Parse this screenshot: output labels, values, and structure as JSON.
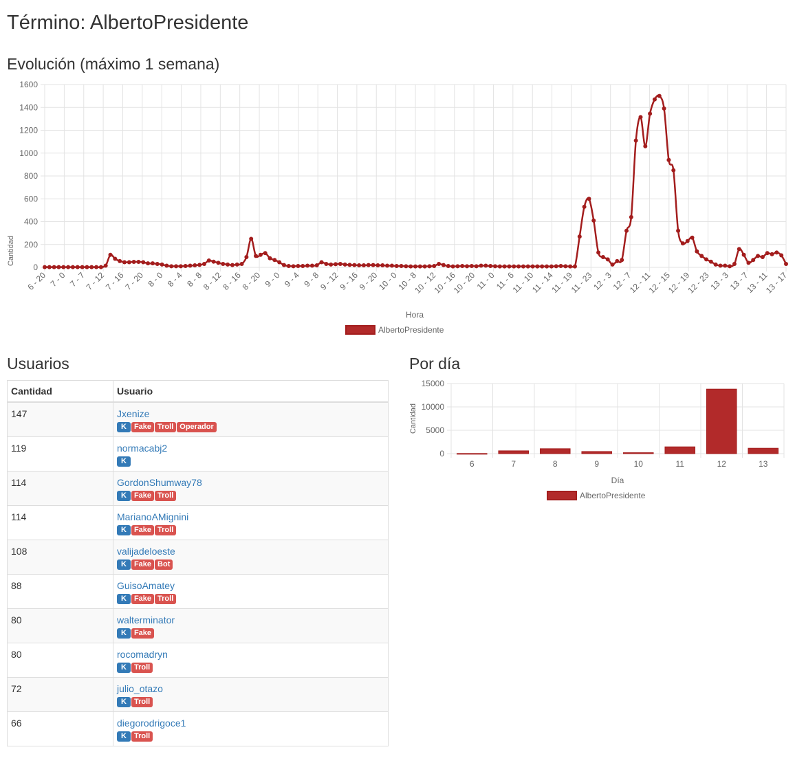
{
  "page": {
    "title": "Término: AlbertoPresidente",
    "evolution_title": "Evolución (máximo 1 semana)",
    "users_title": "Usuarios",
    "by_day_title": "Por día"
  },
  "colors": {
    "series": "#a31d1d",
    "series_fill": "#b22a2a",
    "grid": "#e3e3e3",
    "link": "#337ab7",
    "tag_blue": "#337ab7",
    "tag_red": "#d9534f"
  },
  "chart_data": [
    {
      "type": "line",
      "title": "",
      "xlabel": "Hora",
      "ylabel": "Cantidad",
      "ylim": [
        0,
        1600
      ],
      "yticks": [
        0,
        200,
        400,
        600,
        800,
        1000,
        1200,
        1400,
        1600
      ],
      "grid": true,
      "legend": "bottom-center",
      "x_tick_labels": [
        "6 - 20",
        "7 - 0",
        "7 - 7",
        "7 - 12",
        "7 - 16",
        "7 - 20",
        "8 - 0",
        "8 - 4",
        "8 - 8",
        "8 - 12",
        "8 - 16",
        "8 - 20",
        "9 - 0",
        "9 - 4",
        "9 - 8",
        "9 - 12",
        "9 - 16",
        "9 - 20",
        "10 - 0",
        "10 - 8",
        "10 - 12",
        "10 - 16",
        "10 - 20",
        "11 - 0",
        "11 - 6",
        "11 - 10",
        "11 - 14",
        "11 - 19",
        "11 - 23",
        "12 - 3",
        "12 - 7",
        "12 - 11",
        "12 - 15",
        "12 - 19",
        "12 - 23",
        "13 - 3",
        "13 - 7",
        "13 - 11",
        "13 - 17"
      ],
      "series": [
        {
          "name": "AlbertoPresidente",
          "values": [
            2,
            2,
            2,
            2,
            2,
            2,
            2,
            2,
            2,
            2,
            2,
            2,
            2,
            15,
            110,
            75,
            55,
            45,
            45,
            48,
            48,
            45,
            35,
            35,
            30,
            25,
            15,
            10,
            10,
            10,
            12,
            15,
            18,
            22,
            30,
            60,
            50,
            40,
            30,
            25,
            20,
            25,
            30,
            90,
            250,
            100,
            110,
            125,
            80,
            65,
            45,
            20,
            12,
            10,
            12,
            12,
            15,
            15,
            18,
            45,
            30,
            25,
            28,
            30,
            25,
            22,
            20,
            18,
            18,
            20,
            20,
            18,
            18,
            15,
            15,
            12,
            12,
            10,
            8,
            8,
            8,
            8,
            10,
            12,
            30,
            20,
            12,
            8,
            10,
            12,
            10,
            12,
            10,
            15,
            15,
            12,
            10,
            8,
            8,
            8,
            8,
            8,
            8,
            8,
            8,
            8,
            8,
            8,
            8,
            10,
            12,
            10,
            8,
            8,
            270,
            530,
            600,
            410,
            130,
            90,
            70,
            25,
            55,
            65,
            320,
            440,
            1110,
            1315,
            1060,
            1345,
            1470,
            1500,
            1390,
            940,
            850,
            320,
            210,
            230,
            260,
            140,
            100,
            70,
            50,
            25,
            15,
            15,
            10,
            30,
            160,
            110,
            40,
            65,
            100,
            90,
            125,
            115,
            130,
            105,
            30
          ]
        }
      ]
    },
    {
      "type": "bar",
      "title": "",
      "xlabel": "Día",
      "ylabel": "Cantidad",
      "ylim": [
        0,
        15000
      ],
      "yticks": [
        0,
        5000,
        10000,
        15000
      ],
      "grid": true,
      "legend": "bottom-center",
      "categories": [
        "6",
        "7",
        "8",
        "9",
        "10",
        "11",
        "12",
        "13"
      ],
      "series": [
        {
          "name": "AlbertoPresidente",
          "values": [
            30,
            600,
            1050,
            450,
            200,
            1450,
            13800,
            1150
          ]
        }
      ]
    }
  ],
  "users_table": {
    "headers": [
      "Cantidad",
      "Usuario"
    ],
    "rows": [
      {
        "count": "147",
        "user": "Jxenize",
        "tags": [
          {
            "text": "K",
            "color": "blue"
          },
          {
            "text": "Fake",
            "color": "red"
          },
          {
            "text": "Troll",
            "color": "red"
          },
          {
            "text": "Operador",
            "color": "red"
          }
        ]
      },
      {
        "count": "119",
        "user": "normacabj2",
        "tags": [
          {
            "text": "K",
            "color": "blue"
          }
        ]
      },
      {
        "count": "114",
        "user": "GordonShumway78",
        "tags": [
          {
            "text": "K",
            "color": "blue"
          },
          {
            "text": "Fake",
            "color": "red"
          },
          {
            "text": "Troll",
            "color": "red"
          }
        ]
      },
      {
        "count": "114",
        "user": "MarianoAMignini",
        "tags": [
          {
            "text": "K",
            "color": "blue"
          },
          {
            "text": "Fake",
            "color": "red"
          },
          {
            "text": "Troll",
            "color": "red"
          }
        ]
      },
      {
        "count": "108",
        "user": "valijadeloeste",
        "tags": [
          {
            "text": "K",
            "color": "blue"
          },
          {
            "text": "Fake",
            "color": "red"
          },
          {
            "text": "Bot",
            "color": "red"
          }
        ]
      },
      {
        "count": "88",
        "user": "GuisoAmatey",
        "tags": [
          {
            "text": "K",
            "color": "blue"
          },
          {
            "text": "Fake",
            "color": "red"
          },
          {
            "text": "Troll",
            "color": "red"
          }
        ]
      },
      {
        "count": "80",
        "user": "walterminator",
        "tags": [
          {
            "text": "K",
            "color": "blue"
          },
          {
            "text": "Fake",
            "color": "red"
          }
        ]
      },
      {
        "count": "80",
        "user": "rocomadryn",
        "tags": [
          {
            "text": "K",
            "color": "blue"
          },
          {
            "text": "Troll",
            "color": "red"
          }
        ]
      },
      {
        "count": "72",
        "user": "julio_otazo",
        "tags": [
          {
            "text": "K",
            "color": "blue"
          },
          {
            "text": "Troll",
            "color": "red"
          }
        ]
      },
      {
        "count": "66",
        "user": "diegorodrigoce1",
        "tags": [
          {
            "text": "K",
            "color": "blue"
          },
          {
            "text": "Troll",
            "color": "red"
          }
        ]
      }
    ]
  }
}
